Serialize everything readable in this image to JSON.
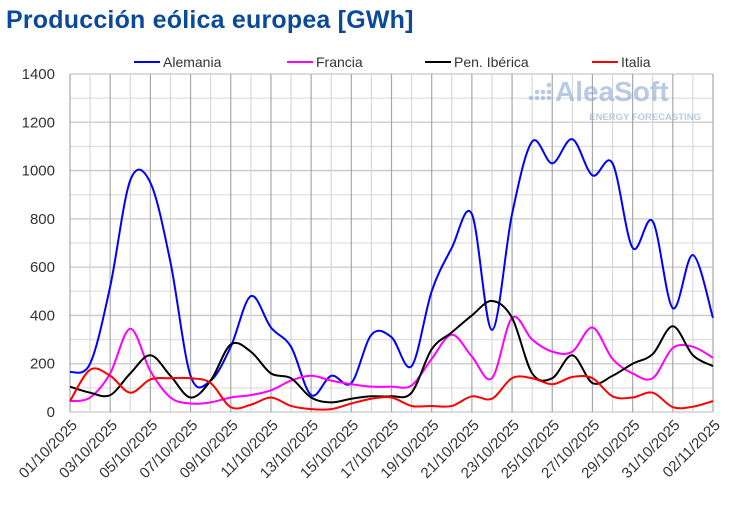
{
  "chart_data": {
    "type": "line",
    "title": "Producción eólica europea [GWh]",
    "xlabel": "",
    "ylabel": "",
    "ylim": [
      0,
      1400
    ],
    "yticks": [
      "0",
      "200",
      "400",
      "600",
      "800",
      "1000",
      "1200",
      "1400"
    ],
    "grid": true,
    "legend_position": "top",
    "x": [
      "01/10/2025",
      "02/10/2025",
      "03/10/2025",
      "04/10/2025",
      "05/10/2025",
      "06/10/2025",
      "07/10/2025",
      "08/10/2025",
      "09/10/2025",
      "10/10/2025",
      "11/10/2025",
      "12/10/2025",
      "13/10/2025",
      "14/10/2025",
      "15/10/2025",
      "16/10/2025",
      "17/10/2025",
      "18/10/2025",
      "19/10/2025",
      "20/10/2025",
      "21/10/2025",
      "22/10/2025",
      "23/10/2025",
      "24/10/2025",
      "25/10/2025",
      "26/10/2025",
      "27/10/2025",
      "28/10/2025",
      "29/10/2025",
      "30/10/2025",
      "31/10/2025",
      "01/11/2025",
      "02/11/2025"
    ],
    "xtick_labels": [
      "01/10/2025",
      "03/10/2025",
      "05/10/2025",
      "07/10/2025",
      "09/10/2025",
      "11/10/2025",
      "13/10/2025",
      "15/10/2025",
      "17/10/2025",
      "19/10/2025",
      "21/10/2025",
      "23/10/2025",
      "25/10/2025",
      "27/10/2025",
      "29/10/2025",
      "31/10/2025",
      "02/11/2025"
    ],
    "series": [
      {
        "name": "Alemania",
        "color": "#0000ff",
        "values": [
          165,
          200,
          520,
          960,
          950,
          620,
          150,
          130,
          270,
          480,
          350,
          270,
          70,
          150,
          120,
          320,
          310,
          190,
          500,
          680,
          820,
          340,
          820,
          1120,
          1030,
          1130,
          980,
          1030,
          680,
          790,
          430,
          650,
          390
        ]
      },
      {
        "name": "Francia",
        "color": "#ff00ff",
        "values": [
          45,
          60,
          160,
          345,
          170,
          60,
          35,
          40,
          60,
          70,
          90,
          130,
          150,
          130,
          115,
          105,
          105,
          110,
          220,
          320,
          230,
          140,
          390,
          300,
          250,
          250,
          350,
          220,
          160,
          140,
          265,
          270,
          225
        ]
      },
      {
        "name": "Pen. Ibérica",
        "color": "#000000",
        "values": [
          105,
          80,
          70,
          160,
          235,
          150,
          60,
          130,
          280,
          250,
          160,
          140,
          60,
          40,
          55,
          65,
          65,
          80,
          260,
          330,
          400,
          460,
          390,
          160,
          140,
          235,
          120,
          150,
          200,
          240,
          355,
          235,
          190
        ]
      },
      {
        "name": "Italia",
        "color": "#ff0000",
        "values": [
          45,
          175,
          150,
          80,
          135,
          140,
          140,
          120,
          20,
          30,
          60,
          25,
          12,
          12,
          35,
          55,
          60,
          25,
          25,
          25,
          65,
          55,
          140,
          140,
          115,
          145,
          140,
          65,
          60,
          80,
          20,
          22,
          45
        ]
      }
    ]
  },
  "watermark": {
    "brand": "AleaSoft",
    "tagline": "ENERGY FORECASTING"
  }
}
